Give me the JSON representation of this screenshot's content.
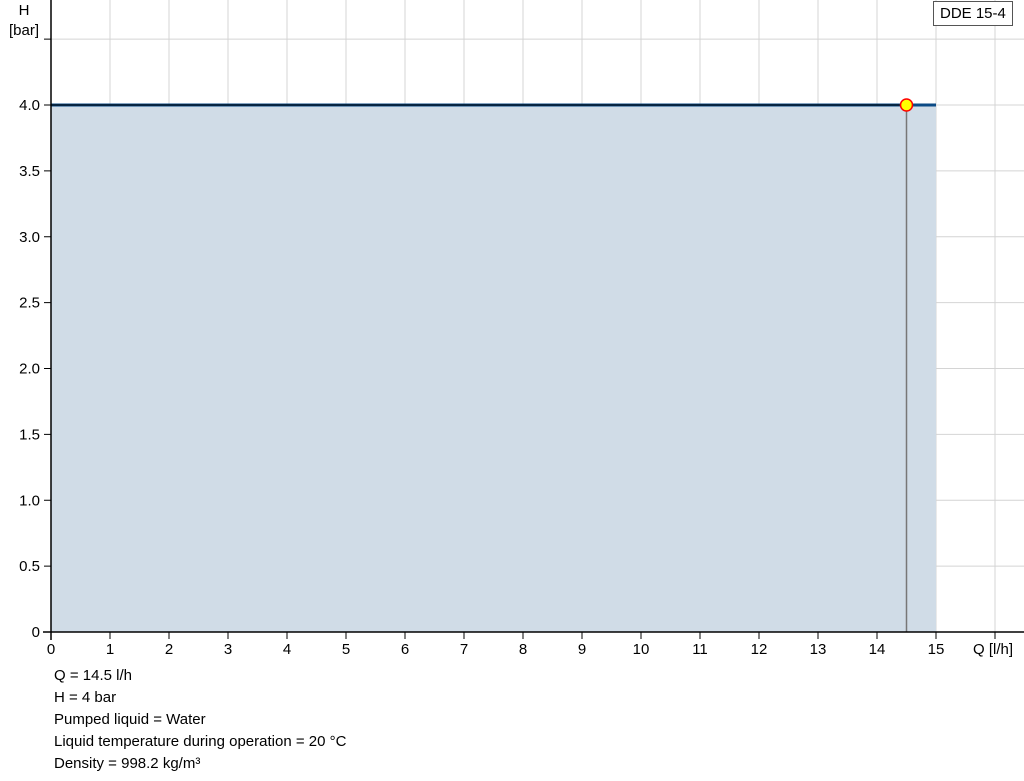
{
  "chart_data": {
    "type": "area",
    "ylabel_line1": "H",
    "ylabel_line2": "[bar]",
    "xlabel": "Q [l/h]",
    "xlim": [
      0,
      16
    ],
    "ylim": [
      0,
      4.5
    ],
    "x_ticks": [
      "0",
      "1",
      "2",
      "3",
      "4",
      "5",
      "6",
      "7",
      "8",
      "9",
      "10",
      "11",
      "12",
      "13",
      "14",
      "15"
    ],
    "y_ticks": [
      "0",
      "0.5",
      "1.0",
      "1.5",
      "2.0",
      "2.5",
      "3.0",
      "3.5",
      "4.0"
    ],
    "grid": true,
    "legend": "top-right",
    "series": [
      {
        "name": "DDE 15-4",
        "x": [
          0,
          15
        ],
        "y": [
          4.0,
          4.0
        ],
        "color": "#0b4a85",
        "fill": "#d0dce7"
      }
    ],
    "operating_point": {
      "x": 14.5,
      "y": 4.0,
      "fill": "#ffff00",
      "stroke": "#ff0000"
    }
  },
  "info": [
    "Q = 14.5 l/h",
    "H = 4 bar",
    "Pumped liquid = Water",
    "Liquid temperature during operation = 20 °C",
    "Density = 998.2 kg/m³"
  ]
}
